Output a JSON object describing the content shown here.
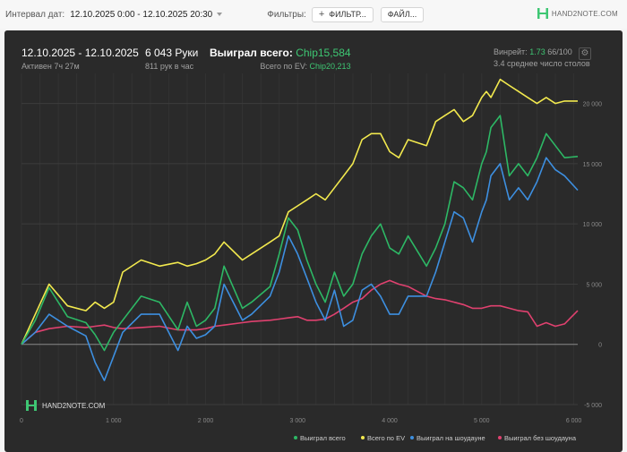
{
  "toolbar": {
    "date_label": "Интервал дат:",
    "date_value": "12.10.2025 0:00 - 12.10.2025 20:30",
    "filters_label": "Фильтры:",
    "filter_button": "ФИЛЬТР...",
    "files_button": "ФАЙЛ...",
    "logo_text": "HAND2NOTE.COM"
  },
  "stats": {
    "date_range": "12.10.2025 - 12.10.2025",
    "active": "Активен 7ч 27м",
    "hands": "6 043 Руки",
    "hands_per_hour": "811 рук в час",
    "won_label": "Выиграл всего:",
    "won_value": "Chip15,584",
    "ev_label": "Всего по EV:",
    "ev_value": "Chip20,213",
    "winrate_label": "Винрейт:",
    "winrate_value": "1.73",
    "winrate_sample": "66/100",
    "tables_avg": "3.4 среднее число столов"
  },
  "watermark": "HAND2NOTE.COM",
  "colors": {
    "won": "#2db865",
    "ev": "#f2e94e",
    "showdown": "#3d8fe0",
    "non_showdown": "#e0416f",
    "bg": "#2a2a2a"
  },
  "chart_data": {
    "type": "line",
    "x_ticks": [
      "0",
      "1 000",
      "2 000",
      "3 000",
      "4 000",
      "5 000",
      "6 000"
    ],
    "y_ticks": [
      "-5 000",
      "0",
      "5 000",
      "10 000",
      "15 000",
      "20 000"
    ],
    "xlim": [
      0,
      6043
    ],
    "ylim": [
      -5000,
      22500
    ],
    "legend_position": "bottom-right",
    "x": [
      0,
      150,
      300,
      500,
      700,
      800,
      900,
      1000,
      1100,
      1300,
      1500,
      1700,
      1800,
      1900,
      2000,
      2100,
      2200,
      2400,
      2500,
      2700,
      2800,
      2900,
      3000,
      3100,
      3200,
      3300,
      3400,
      3500,
      3600,
      3700,
      3800,
      3900,
      4000,
      4100,
      4200,
      4400,
      4500,
      4600,
      4700,
      4800,
      4900,
      5000,
      5050,
      5100,
      5200,
      5300,
      5400,
      5500,
      5600,
      5700,
      5800,
      5900,
      6043
    ],
    "series": [
      {
        "name": "Выиграл всего",
        "key": "won",
        "values": [
          0,
          2000,
          4700,
          2300,
          1800,
          800,
          -500,
          1000,
          2000,
          4000,
          3500,
          1200,
          3500,
          1500,
          2000,
          3000,
          6500,
          3000,
          3500,
          4800,
          7500,
          10500,
          9500,
          7000,
          5000,
          3500,
          6000,
          4000,
          5000,
          7500,
          9000,
          10000,
          8000,
          7500,
          9000,
          6500,
          8000,
          10000,
          13500,
          13000,
          12000,
          15000,
          16000,
          18000,
          19000,
          14000,
          15000,
          14000,
          15500,
          17500,
          16500,
          15500,
          15600
        ]
      },
      {
        "name": "Всего по EV",
        "key": "ev",
        "values": [
          0,
          2500,
          5000,
          3200,
          2800,
          3500,
          3000,
          3500,
          6000,
          7000,
          6500,
          6800,
          6500,
          6700,
          7000,
          7500,
          8500,
          7000,
          7500,
          8500,
          9000,
          11000,
          11500,
          12000,
          12500,
          12000,
          13000,
          14000,
          15000,
          17000,
          17500,
          17500,
          16000,
          15500,
          17000,
          16500,
          18500,
          19000,
          19500,
          18500,
          19000,
          20500,
          21000,
          20500,
          22000,
          21500,
          21000,
          20500,
          20000,
          20500,
          20000,
          20200,
          20200
        ]
      },
      {
        "name": "Выиграл на шоудауне",
        "key": "showdown",
        "values": [
          0,
          1000,
          2500,
          1500,
          700,
          -1500,
          -3000,
          -1000,
          1000,
          2500,
          2500,
          -500,
          1500,
          500,
          800,
          1500,
          5000,
          2000,
          2500,
          4000,
          6000,
          9000,
          7500,
          5500,
          3500,
          2000,
          4500,
          1500,
          2000,
          4500,
          5000,
          4000,
          2500,
          2500,
          4000,
          4000,
          6000,
          8500,
          11000,
          10500,
          8500,
          11000,
          12000,
          14000,
          15000,
          12000,
          13000,
          12000,
          13500,
          15500,
          14500,
          14000,
          12800
        ]
      },
      {
        "name": "Выиграл без шоудауна",
        "key": "non_showdown",
        "values": [
          0,
          1000,
          1300,
          1500,
          1400,
          1500,
          1600,
          1400,
          1300,
          1400,
          1500,
          1200,
          1200,
          1200,
          1300,
          1500,
          1600,
          1800,
          1900,
          2000,
          2100,
          2200,
          2300,
          2000,
          2000,
          2100,
          2500,
          3000,
          3500,
          3800,
          4500,
          5000,
          5300,
          5000,
          4800,
          4000,
          3800,
          3700,
          3500,
          3300,
          3000,
          3000,
          3100,
          3200,
          3200,
          3000,
          2800,
          2700,
          1500,
          1800,
          1500,
          1700,
          2800
        ]
      }
    ]
  }
}
